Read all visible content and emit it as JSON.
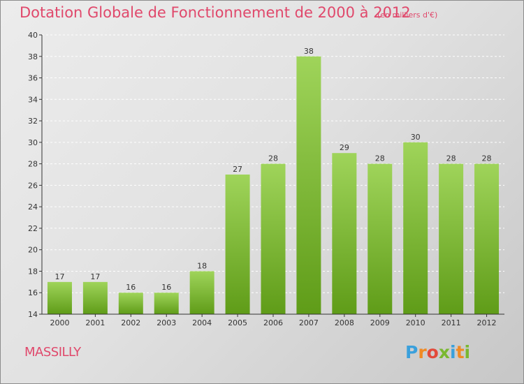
{
  "title": "Dotation Globale de Fonctionnement de 2000 à 2012",
  "subtitle": "(en milliers d'€)",
  "commune": "MASSILLY",
  "logo": {
    "letters": [
      "P",
      "r",
      "o",
      "x",
      "i",
      "t",
      "i"
    ],
    "colors": [
      "#3aa0dc",
      "#f08a24",
      "#e24a3b",
      "#7ab830",
      "#3aa0dc",
      "#f08a24",
      "#7ab830"
    ]
  },
  "colors": {
    "bar_top": "#9fd45a",
    "bar_bottom": "#5f9c18",
    "title": "#e0486b",
    "grid": "#ffffff",
    "axis": "#333333"
  },
  "chart_data": {
    "type": "bar",
    "categories": [
      "2000",
      "2001",
      "2002",
      "2003",
      "2004",
      "2005",
      "2006",
      "2007",
      "2008",
      "2009",
      "2010",
      "2011",
      "2012"
    ],
    "values": [
      17,
      17,
      16,
      16,
      18,
      27,
      28,
      38,
      29,
      28,
      30,
      28,
      28
    ],
    "ylim": [
      14,
      40
    ],
    "yticks": [
      14,
      16,
      18,
      20,
      22,
      24,
      26,
      28,
      30,
      32,
      34,
      36,
      38,
      40
    ],
    "grid": true,
    "data_labels": true
  }
}
